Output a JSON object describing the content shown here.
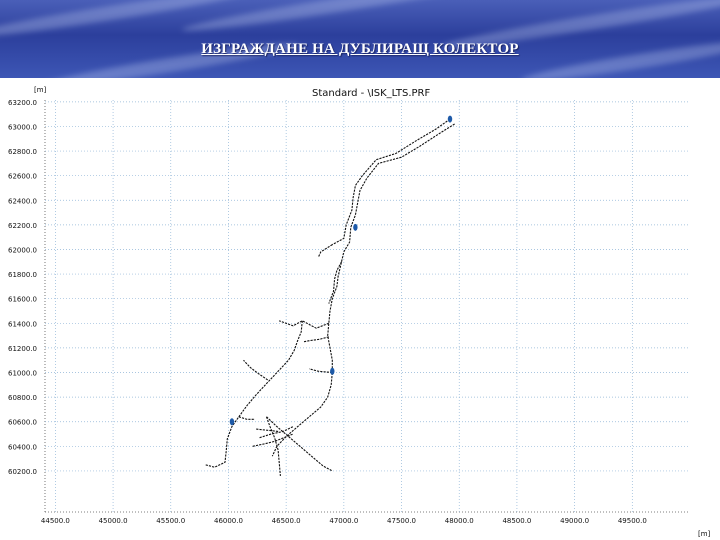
{
  "header": {
    "title": "ИЗГРАЖДАНЕ НА ДУБЛИРАЩ КОЛЕКТОР"
  },
  "chart_data": {
    "type": "line",
    "title": "Standard - \\ISK_LTS.PRF",
    "xlabel": "[m]",
    "ylabel": "[m]",
    "xlim": [
      44410,
      50000
    ],
    "ylim": [
      59980,
      63215
    ],
    "x_ticks": [
      44500,
      45000,
      45500,
      46000,
      46500,
      47000,
      47500,
      48000,
      48500,
      49000,
      49500
    ],
    "x_tick_labels": [
      "44500.0",
      "45000.0",
      "45500.0",
      "46000.0",
      "46500.0",
      "47000.0",
      "47500.0",
      "48000.0",
      "48500.0",
      "49000.0",
      "49500.0"
    ],
    "y_ticks": [
      63200,
      63000,
      62800,
      62600,
      62400,
      62200,
      62000,
      61800,
      61600,
      61400,
      61200,
      61000,
      60800,
      60600,
      60400,
      60200
    ],
    "y_tick_labels": [
      "63200.0",
      "63000.0",
      "62800.0",
      "62600.0",
      "62400.0",
      "62200.0",
      "62000.0",
      "61800.0",
      "61600.0",
      "61400.0",
      "61200.0",
      "61000.0",
      "60800.0",
      "60600.0",
      "60400.0",
      "60200.0"
    ],
    "grid": true,
    "line_color": "#111111",
    "marker_color": "#1e5aa8",
    "series": [
      {
        "points": [
          [
            47920,
            63060
          ],
          [
            47800,
            62980
          ],
          [
            47620,
            62880
          ],
          [
            47450,
            62780
          ],
          [
            47280,
            62730
          ],
          [
            47160,
            62600
          ],
          [
            47100,
            62520
          ],
          [
            47080,
            62420
          ],
          [
            47070,
            62320
          ],
          [
            47020,
            62200
          ],
          [
            47000,
            62090
          ],
          [
            46900,
            62040
          ]
        ]
      },
      {
        "points": [
          [
            47960,
            63020
          ],
          [
            47840,
            62950
          ],
          [
            47660,
            62840
          ],
          [
            47500,
            62750
          ],
          [
            47300,
            62700
          ],
          [
            47200,
            62580
          ],
          [
            47140,
            62480
          ],
          [
            47120,
            62380
          ],
          [
            47100,
            62280
          ],
          [
            47060,
            62180
          ],
          [
            47050,
            62060
          ],
          [
            47000,
            61980
          ],
          [
            46980,
            61900
          ],
          [
            46950,
            61780
          ],
          [
            46940,
            61700
          ],
          [
            46900,
            61600
          ],
          [
            46880,
            61500
          ],
          [
            46870,
            61400
          ],
          [
            46860,
            61300
          ],
          [
            46880,
            61200
          ],
          [
            46900,
            61100
          ],
          [
            46900,
            61000
          ],
          [
            46890,
            60900
          ],
          [
            46860,
            60800
          ],
          [
            46800,
            60720
          ],
          [
            46700,
            60640
          ],
          [
            46600,
            60560
          ],
          [
            46500,
            60480
          ],
          [
            46420,
            60400
          ],
          [
            46380,
            60320
          ]
        ]
      },
      {
        "points": [
          [
            46900,
            62040
          ],
          [
            46800,
            61980
          ],
          [
            46780,
            61940
          ]
        ]
      },
      {
        "points": [
          [
            46980,
            61900
          ],
          [
            46940,
            61830
          ],
          [
            46920,
            61760
          ],
          [
            46910,
            61660
          ],
          [
            46870,
            61560
          ]
        ]
      },
      {
        "points": [
          [
            46870,
            61400
          ],
          [
            46760,
            61360
          ],
          [
            46640,
            61420
          ],
          [
            46560,
            61380
          ],
          [
            46440,
            61420
          ]
        ]
      },
      {
        "points": [
          [
            46640,
            61420
          ],
          [
            46630,
            61330
          ],
          [
            46600,
            61260
          ],
          [
            46570,
            61180
          ],
          [
            46520,
            61100
          ],
          [
            46430,
            61010
          ],
          [
            46330,
            60910
          ],
          [
            46240,
            60820
          ],
          [
            46160,
            60730
          ],
          [
            46090,
            60640
          ],
          [
            46030,
            60560
          ],
          [
            45990,
            60460
          ],
          [
            45980,
            60360
          ],
          [
            45970,
            60270
          ],
          [
            45880,
            60230
          ],
          [
            45800,
            60250
          ]
        ]
      },
      {
        "points": [
          [
            46870,
            61290
          ],
          [
            46790,
            61270
          ],
          [
            46710,
            61260
          ],
          [
            46650,
            61250
          ]
        ]
      },
      {
        "points": [
          [
            46900,
            61000
          ],
          [
            46780,
            61010
          ],
          [
            46700,
            61030
          ]
        ]
      },
      {
        "points": [
          [
            46340,
            60940
          ],
          [
            46260,
            60990
          ],
          [
            46190,
            61040
          ],
          [
            46130,
            61100
          ]
        ]
      },
      {
        "points": [
          [
            46090,
            60640
          ],
          [
            46160,
            60620
          ],
          [
            46230,
            60620
          ]
        ]
      },
      {
        "points": [
          [
            46330,
            60640
          ],
          [
            46420,
            60560
          ],
          [
            46520,
            60480
          ],
          [
            46620,
            60400
          ],
          [
            46720,
            60320
          ],
          [
            46820,
            60240
          ],
          [
            46900,
            60200
          ]
        ]
      },
      {
        "points": [
          [
            46330,
            60640
          ],
          [
            46360,
            60560
          ],
          [
            46400,
            60470
          ],
          [
            46430,
            60370
          ],
          [
            46440,
            60270
          ],
          [
            46450,
            60160
          ]
        ]
      },
      {
        "points": [
          [
            46210,
            60400
          ],
          [
            46310,
            60420
          ],
          [
            46400,
            60440
          ],
          [
            46480,
            60470
          ],
          [
            46560,
            60500
          ]
        ]
      },
      {
        "points": [
          [
            46240,
            60540
          ],
          [
            46340,
            60530
          ],
          [
            46440,
            60520
          ]
        ]
      },
      {
        "points": [
          [
            46270,
            60470
          ],
          [
            46370,
            60500
          ],
          [
            46470,
            60520
          ],
          [
            46560,
            60560
          ]
        ]
      }
    ],
    "markers": [
      [
        47920,
        63060
      ],
      [
        47100,
        62180
      ],
      [
        46900,
        61010
      ],
      [
        46030,
        60600
      ]
    ]
  }
}
